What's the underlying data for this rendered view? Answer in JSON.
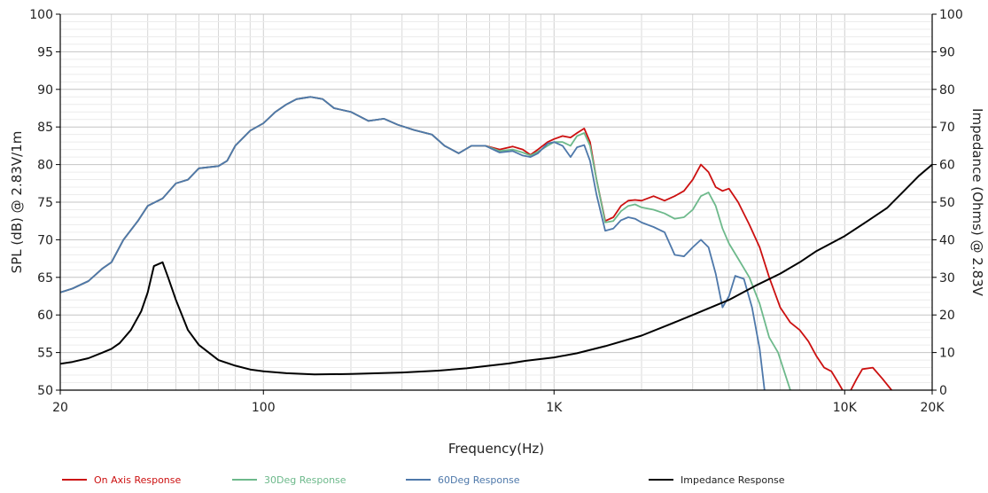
{
  "chart_data": {
    "type": "line",
    "xscale": "log",
    "xlabel": "Frequency(Hz)",
    "ylabel": "SPL (dB) @ 2.83V/1m",
    "y2label": "Impedance (Ohms) @ 2.83V",
    "xlim": [
      20,
      20000
    ],
    "ylim": [
      50,
      100
    ],
    "y2lim": [
      0,
      100
    ],
    "x_ticks": [
      {
        "value": 20,
        "label": "20"
      },
      {
        "value": 100,
        "label": "100"
      },
      {
        "value": 1000,
        "label": "1K"
      },
      {
        "value": 10000,
        "label": "10K"
      },
      {
        "value": 20000,
        "label": "20K"
      }
    ],
    "y_ticks": [
      50,
      55,
      60,
      65,
      70,
      75,
      80,
      85,
      90,
      95,
      100
    ],
    "y2_ticks": [
      0,
      10,
      20,
      30,
      40,
      50,
      60,
      70,
      80,
      90,
      100
    ],
    "grid": true,
    "legend_position": "bottom",
    "series": [
      {
        "name": "On Axis Response",
        "axis": "left",
        "color": "#cc1010",
        "points": [
          [
            20,
            63
          ],
          [
            22,
            63.5
          ],
          [
            25,
            64.5
          ],
          [
            28,
            66.2
          ],
          [
            30,
            67
          ],
          [
            33,
            70
          ],
          [
            37,
            72.5
          ],
          [
            40,
            74.5
          ],
          [
            45,
            75.5
          ],
          [
            50,
            77.5
          ],
          [
            55,
            78
          ],
          [
            60,
            79.5
          ],
          [
            70,
            79.8
          ],
          [
            75,
            80.5
          ],
          [
            80,
            82.5
          ],
          [
            90,
            84.5
          ],
          [
            100,
            85.5
          ],
          [
            110,
            87
          ],
          [
            120,
            88
          ],
          [
            130,
            88.7
          ],
          [
            145,
            89
          ],
          [
            160,
            88.7
          ],
          [
            175,
            87.5
          ],
          [
            200,
            87
          ],
          [
            230,
            85.8
          ],
          [
            260,
            86.1
          ],
          [
            290,
            85.3
          ],
          [
            330,
            84.6
          ],
          [
            380,
            84
          ],
          [
            420,
            82.5
          ],
          [
            470,
            81.5
          ],
          [
            520,
            82.5
          ],
          [
            580,
            82.5
          ],
          [
            650,
            82
          ],
          [
            720,
            82.4
          ],
          [
            780,
            82
          ],
          [
            830,
            81.3
          ],
          [
            880,
            82
          ],
          [
            950,
            83
          ],
          [
            1000,
            83.4
          ],
          [
            1070,
            83.8
          ],
          [
            1140,
            83.6
          ],
          [
            1200,
            84.2
          ],
          [
            1270,
            84.8
          ],
          [
            1330,
            83
          ],
          [
            1400,
            78
          ],
          [
            1500,
            72.5
          ],
          [
            1600,
            73
          ],
          [
            1700,
            74.5
          ],
          [
            1800,
            75.2
          ],
          [
            1900,
            75.3
          ],
          [
            2000,
            75.2
          ],
          [
            2200,
            75.8
          ],
          [
            2400,
            75.2
          ],
          [
            2600,
            75.8
          ],
          [
            2800,
            76.5
          ],
          [
            3000,
            78
          ],
          [
            3200,
            80
          ],
          [
            3400,
            79
          ],
          [
            3600,
            77
          ],
          [
            3800,
            76.5
          ],
          [
            4000,
            76.8
          ],
          [
            4300,
            75
          ],
          [
            4700,
            72
          ],
          [
            5100,
            69
          ],
          [
            5500,
            65
          ],
          [
            6000,
            61
          ],
          [
            6500,
            59
          ],
          [
            7000,
            58
          ],
          [
            7500,
            56.5
          ],
          [
            8000,
            54.5
          ],
          [
            8500,
            53
          ],
          [
            9000,
            52.5
          ],
          [
            9500,
            51
          ],
          [
            10000,
            49.5
          ],
          [
            10500,
            50
          ],
          [
            11000,
            51.5
          ],
          [
            11500,
            52.8
          ],
          [
            12500,
            53
          ],
          [
            13500,
            51.5
          ],
          [
            14500,
            50
          ]
        ]
      },
      {
        "name": "30Deg Response",
        "axis": "left",
        "color": "#6db98b",
        "points": [
          [
            20,
            63
          ],
          [
            22,
            63.5
          ],
          [
            25,
            64.5
          ],
          [
            28,
            66.2
          ],
          [
            30,
            67
          ],
          [
            33,
            70
          ],
          [
            37,
            72.5
          ],
          [
            40,
            74.5
          ],
          [
            45,
            75.5
          ],
          [
            50,
            77.5
          ],
          [
            55,
            78
          ],
          [
            60,
            79.5
          ],
          [
            70,
            79.8
          ],
          [
            75,
            80.5
          ],
          [
            80,
            82.5
          ],
          [
            90,
            84.5
          ],
          [
            100,
            85.5
          ],
          [
            110,
            87
          ],
          [
            120,
            88
          ],
          [
            130,
            88.7
          ],
          [
            145,
            89
          ],
          [
            160,
            88.7
          ],
          [
            175,
            87.5
          ],
          [
            200,
            87
          ],
          [
            230,
            85.8
          ],
          [
            260,
            86.1
          ],
          [
            290,
            85.3
          ],
          [
            330,
            84.6
          ],
          [
            380,
            84
          ],
          [
            420,
            82.5
          ],
          [
            470,
            81.5
          ],
          [
            520,
            82.5
          ],
          [
            580,
            82.5
          ],
          [
            650,
            81.8
          ],
          [
            720,
            82
          ],
          [
            780,
            81.6
          ],
          [
            830,
            81.2
          ],
          [
            880,
            81.7
          ],
          [
            950,
            82.5
          ],
          [
            1000,
            83
          ],
          [
            1070,
            83
          ],
          [
            1140,
            82.5
          ],
          [
            1200,
            83.8
          ],
          [
            1270,
            84.2
          ],
          [
            1330,
            82.5
          ],
          [
            1400,
            78
          ],
          [
            1500,
            72.3
          ],
          [
            1600,
            72.5
          ],
          [
            1700,
            73.8
          ],
          [
            1800,
            74.5
          ],
          [
            1900,
            74.7
          ],
          [
            2000,
            74.3
          ],
          [
            2200,
            74
          ],
          [
            2400,
            73.5
          ],
          [
            2600,
            72.8
          ],
          [
            2800,
            73
          ],
          [
            3000,
            74
          ],
          [
            3200,
            75.8
          ],
          [
            3400,
            76.3
          ],
          [
            3600,
            74.5
          ],
          [
            3800,
            71.5
          ],
          [
            4000,
            69.5
          ],
          [
            4300,
            67.5
          ],
          [
            4700,
            65
          ],
          [
            5100,
            61.5
          ],
          [
            5500,
            57
          ],
          [
            5900,
            55
          ],
          [
            6500,
            50
          ]
        ]
      },
      {
        "name": "60Deg Response",
        "axis": "left",
        "color": "#4e78aa",
        "points": [
          [
            20,
            63
          ],
          [
            22,
            63.5
          ],
          [
            25,
            64.5
          ],
          [
            28,
            66.2
          ],
          [
            30,
            67
          ],
          [
            33,
            70
          ],
          [
            37,
            72.5
          ],
          [
            40,
            74.5
          ],
          [
            45,
            75.5
          ],
          [
            50,
            77.5
          ],
          [
            55,
            78
          ],
          [
            60,
            79.5
          ],
          [
            70,
            79.8
          ],
          [
            75,
            80.5
          ],
          [
            80,
            82.5
          ],
          [
            90,
            84.5
          ],
          [
            100,
            85.5
          ],
          [
            110,
            87
          ],
          [
            120,
            88
          ],
          [
            130,
            88.7
          ],
          [
            145,
            89
          ],
          [
            160,
            88.7
          ],
          [
            175,
            87.5
          ],
          [
            200,
            87
          ],
          [
            230,
            85.8
          ],
          [
            260,
            86.1
          ],
          [
            290,
            85.3
          ],
          [
            330,
            84.6
          ],
          [
            380,
            84
          ],
          [
            420,
            82.5
          ],
          [
            470,
            81.5
          ],
          [
            520,
            82.5
          ],
          [
            580,
            82.5
          ],
          [
            650,
            81.6
          ],
          [
            720,
            81.8
          ],
          [
            780,
            81.2
          ],
          [
            830,
            81
          ],
          [
            880,
            81.5
          ],
          [
            950,
            82.8
          ],
          [
            1000,
            83
          ],
          [
            1070,
            82.5
          ],
          [
            1140,
            81
          ],
          [
            1200,
            82.3
          ],
          [
            1270,
            82.6
          ],
          [
            1330,
            80.5
          ],
          [
            1400,
            76
          ],
          [
            1500,
            71.2
          ],
          [
            1600,
            71.5
          ],
          [
            1700,
            72.6
          ],
          [
            1800,
            73
          ],
          [
            1900,
            72.8
          ],
          [
            2000,
            72.3
          ],
          [
            2200,
            71.7
          ],
          [
            2400,
            71
          ],
          [
            2600,
            68
          ],
          [
            2800,
            67.8
          ],
          [
            3000,
            69
          ],
          [
            3200,
            70
          ],
          [
            3400,
            69
          ],
          [
            3600,
            65.5
          ],
          [
            3800,
            61
          ],
          [
            4000,
            62.5
          ],
          [
            4200,
            65.2
          ],
          [
            4500,
            64.8
          ],
          [
            4800,
            61
          ],
          [
            5100,
            55.5
          ],
          [
            5300,
            50
          ]
        ]
      },
      {
        "name": "Impedance Response",
        "axis": "right",
        "color": "#000000",
        "points": [
          [
            20,
            7
          ],
          [
            22,
            7.5
          ],
          [
            25,
            8.5
          ],
          [
            28,
            10
          ],
          [
            30,
            11
          ],
          [
            32,
            12.5
          ],
          [
            35,
            16
          ],
          [
            38,
            21
          ],
          [
            40,
            26
          ],
          [
            42,
            33
          ],
          [
            45,
            34
          ],
          [
            47,
            30
          ],
          [
            50,
            24
          ],
          [
            55,
            16
          ],
          [
            60,
            12
          ],
          [
            70,
            8
          ],
          [
            80,
            6.5
          ],
          [
            90,
            5.5
          ],
          [
            100,
            5
          ],
          [
            120,
            4.5
          ],
          [
            150,
            4.2
          ],
          [
            200,
            4.3
          ],
          [
            300,
            4.7
          ],
          [
            400,
            5.2
          ],
          [
            500,
            5.8
          ],
          [
            600,
            6.5
          ],
          [
            700,
            7.1
          ],
          [
            800,
            7.8
          ],
          [
            1000,
            8.7
          ],
          [
            1200,
            9.8
          ],
          [
            1500,
            11.7
          ],
          [
            2000,
            14.5
          ],
          [
            2500,
            17.5
          ],
          [
            3000,
            20
          ],
          [
            4000,
            24
          ],
          [
            5000,
            28
          ],
          [
            6000,
            31
          ],
          [
            7000,
            34
          ],
          [
            8000,
            37
          ],
          [
            10000,
            41
          ],
          [
            12000,
            45
          ],
          [
            14000,
            48.5
          ],
          [
            16000,
            53
          ],
          [
            18000,
            57
          ],
          [
            20000,
            60
          ]
        ]
      }
    ]
  }
}
